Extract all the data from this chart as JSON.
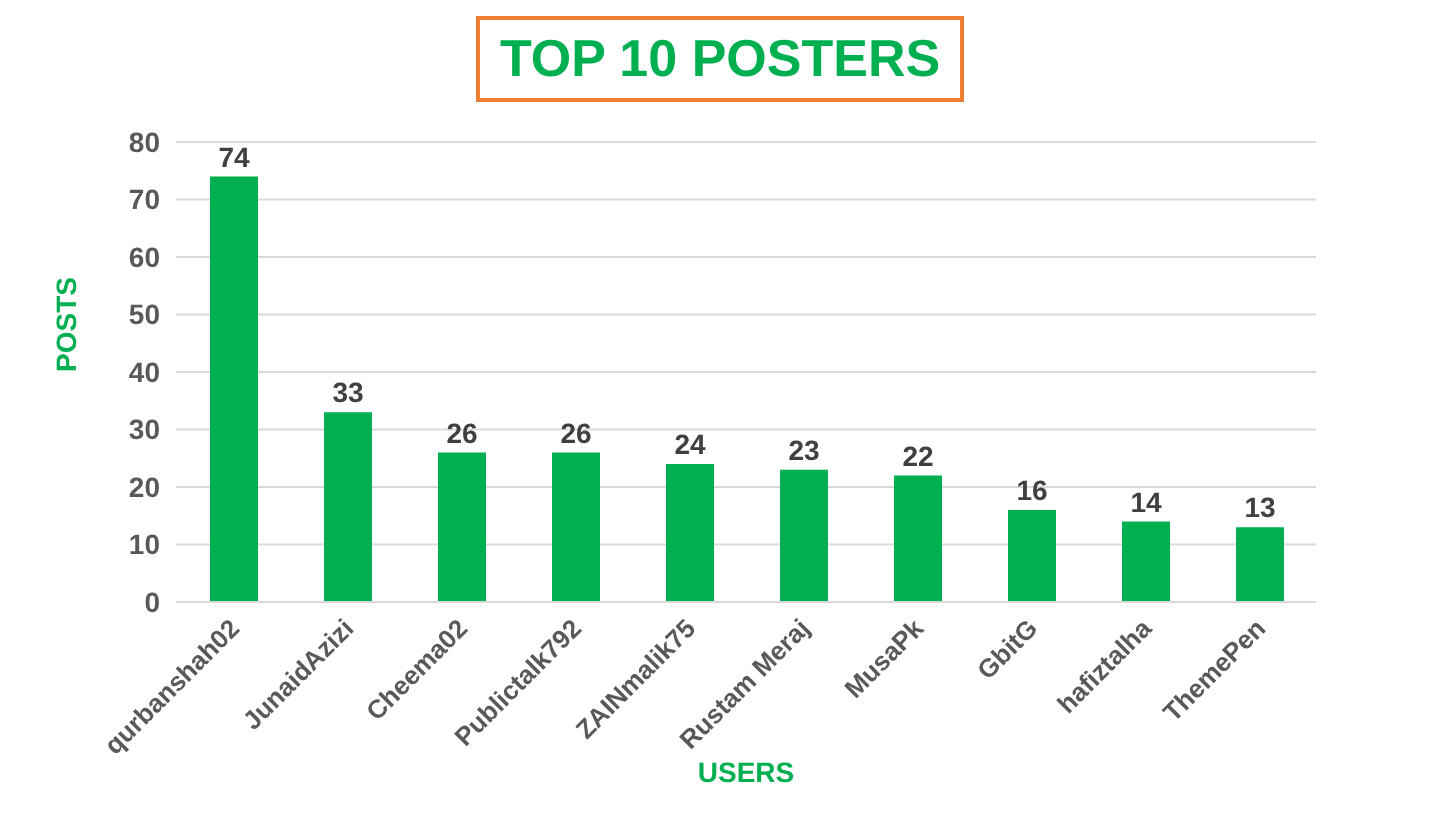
{
  "chart_data": {
    "type": "bar",
    "title": "TOP 10 POSTERS",
    "xlabel": "USERS",
    "ylabel": "POSTS",
    "categories": [
      "qurbanshah02",
      "JunaidAzizi",
      "Cheema02",
      "Publictalk792",
      "ZAINmalik75",
      "Rustam Meraj",
      "MusaPk",
      "GbitG",
      "hafiztalha",
      "ThemePen"
    ],
    "values": [
      74,
      33,
      26,
      26,
      24,
      23,
      22,
      16,
      14,
      13
    ],
    "color": "#00b050",
    "ylim": [
      0,
      80
    ],
    "yticks": [
      0,
      10,
      20,
      30,
      40,
      50,
      60,
      70,
      80
    ],
    "grid": "y",
    "data_labels": true
  }
}
